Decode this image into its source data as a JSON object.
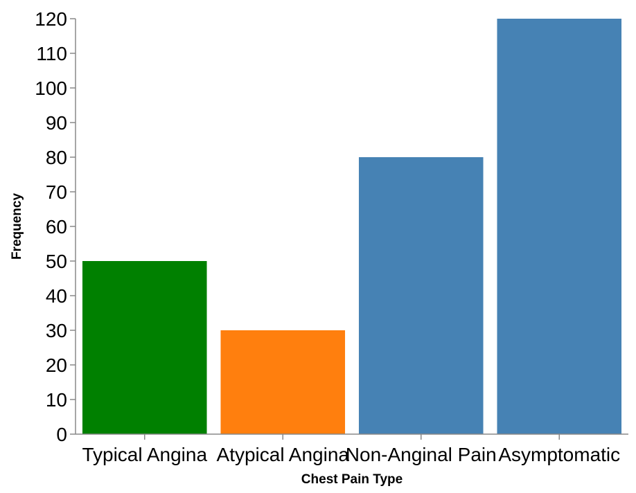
{
  "chart_data": {
    "type": "bar",
    "title": "",
    "xlabel": "Chest Pain Type",
    "ylabel": "Frequency",
    "categories": [
      "Typical Angina",
      "Atypical Angina",
      "Non-Anginal Pain",
      "Asymptomatic"
    ],
    "values": [
      50,
      30,
      80,
      120
    ],
    "colors": [
      "#008000",
      "#ff7f0e",
      "#4682b4",
      "#4682b4"
    ],
    "ylim": [
      0,
      120
    ],
    "yticks": [
      0,
      10,
      20,
      30,
      40,
      50,
      60,
      70,
      80,
      90,
      100,
      110,
      120
    ],
    "grid": false,
    "legend": "none"
  }
}
